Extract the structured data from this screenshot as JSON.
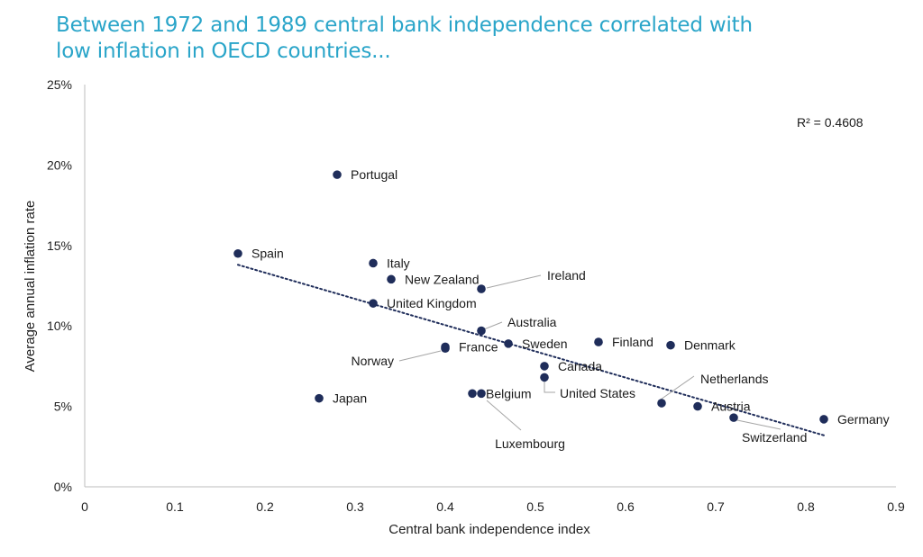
{
  "title_line1": "Between 1972 and 1989 central bank independence correlated with",
  "title_line2": "low inflation in OECD countries...",
  "chart_data": {
    "type": "scatter",
    "xlabel": "Central bank independence index",
    "ylabel": "Average annual inflation rate",
    "xlim": [
      0,
      0.9
    ],
    "ylim": [
      0,
      25
    ],
    "x_ticks": [
      "0",
      "0.1",
      "0.2",
      "0.3",
      "0.4",
      "0.5",
      "0.6",
      "0.7",
      "0.8",
      "0.9"
    ],
    "y_ticks": [
      "0%",
      "5%",
      "10%",
      "15%",
      "20%",
      "25%"
    ],
    "annotation": "R² = 0.4608",
    "marker_color": "#1f2d5a",
    "trendline": {
      "style": "dotted",
      "x": [
        0.17,
        0.82
      ],
      "y": [
        13.8,
        3.2
      ]
    },
    "points": [
      {
        "name": "Portugal",
        "x": 0.28,
        "y": 19.4
      },
      {
        "name": "Spain",
        "x": 0.17,
        "y": 14.5
      },
      {
        "name": "Italy",
        "x": 0.32,
        "y": 13.9
      },
      {
        "name": "New Zealand",
        "x": 0.34,
        "y": 12.9
      },
      {
        "name": "Ireland",
        "x": 0.44,
        "y": 12.3
      },
      {
        "name": "United Kingdom",
        "x": 0.32,
        "y": 11.4
      },
      {
        "name": "Australia",
        "x": 0.44,
        "y": 9.7
      },
      {
        "name": "France",
        "x": 0.4,
        "y": 8.7
      },
      {
        "name": "Norway",
        "x": 0.4,
        "y": 8.6
      },
      {
        "name": "Sweden",
        "x": 0.47,
        "y": 8.9
      },
      {
        "name": "Finland",
        "x": 0.57,
        "y": 9.0
      },
      {
        "name": "Denmark",
        "x": 0.65,
        "y": 8.8
      },
      {
        "name": "Canada",
        "x": 0.51,
        "y": 7.5
      },
      {
        "name": "United States",
        "x": 0.51,
        "y": 6.8
      },
      {
        "name": "Japan",
        "x": 0.26,
        "y": 5.5
      },
      {
        "name": "Belgium",
        "x": 0.44,
        "y": 5.8
      },
      {
        "name": "Luxembourg",
        "x": 0.43,
        "y": 5.8
      },
      {
        "name": "Netherlands",
        "x": 0.64,
        "y": 5.2
      },
      {
        "name": "Austria",
        "x": 0.68,
        "y": 5.0
      },
      {
        "name": "Switzerland",
        "x": 0.72,
        "y": 4.3
      },
      {
        "name": "Germany",
        "x": 0.82,
        "y": 4.2
      }
    ]
  }
}
